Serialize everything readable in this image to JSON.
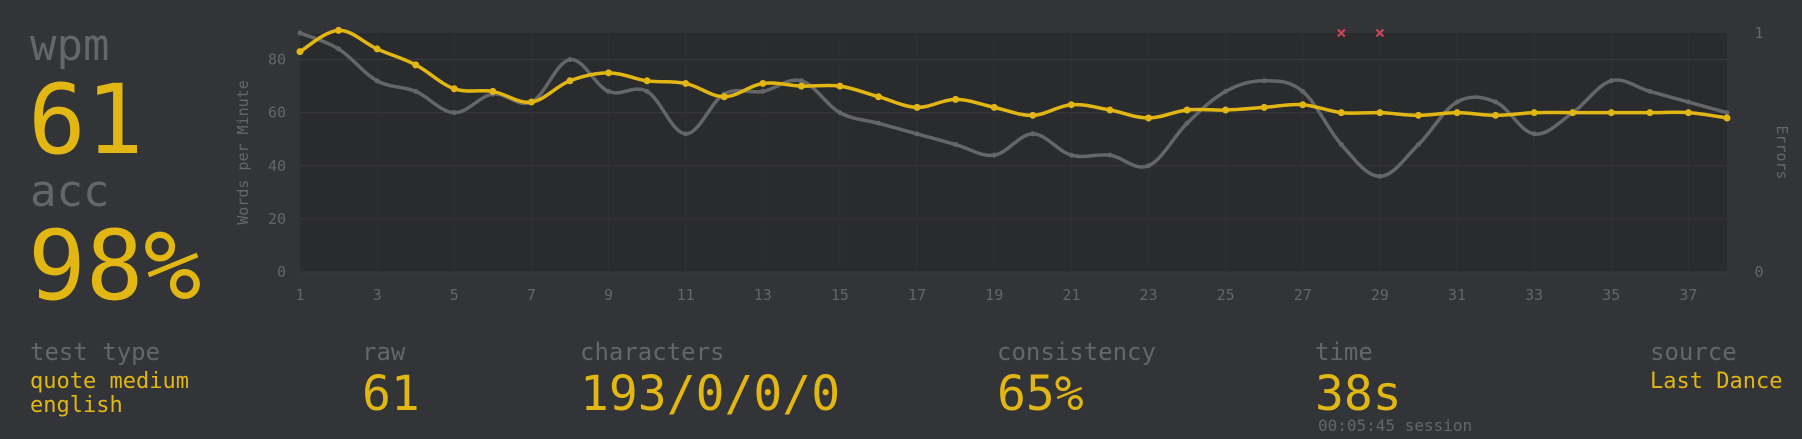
{
  "summary": {
    "wpm_label": "wpm",
    "wpm_value": "61",
    "acc_label": "acc",
    "acc_value": "98%"
  },
  "stats": {
    "test_type_label": "test type",
    "test_type_line1": "quote medium",
    "test_type_line2": "english",
    "raw_label": "raw",
    "raw_value": "61",
    "characters_label": "characters",
    "characters_value": "193/0/0/0",
    "consistency_label": "consistency",
    "consistency_value": "65%",
    "time_label": "time",
    "time_value": "38s",
    "session_time": "00:05:45 session",
    "source_label": "source",
    "source_value": "Last Dance"
  },
  "colors": {
    "background": "#323437",
    "plot_area": "#2a2b2d",
    "accent": "#e2b714",
    "raw_line": "#646669",
    "error": "#ca4754",
    "muted_text": "#646669"
  },
  "chart_data": {
    "type": "line",
    "x": [
      1,
      2,
      3,
      4,
      5,
      6,
      7,
      8,
      9,
      10,
      11,
      12,
      13,
      14,
      15,
      16,
      17,
      18,
      19,
      20,
      21,
      22,
      23,
      24,
      25,
      26,
      27,
      28,
      29,
      30,
      31,
      32,
      33,
      34,
      35,
      36,
      37,
      38
    ],
    "x_ticks": [
      1,
      3,
      5,
      7,
      9,
      11,
      13,
      15,
      17,
      19,
      21,
      23,
      25,
      27,
      29,
      31,
      33,
      35,
      37
    ],
    "ylabel": "Words per Minute",
    "y2label": "Errors",
    "ylim": [
      0,
      90
    ],
    "y_ticks": [
      0,
      20,
      40,
      60,
      80
    ],
    "y2lim": [
      0,
      1
    ],
    "y2_ticks": [
      0,
      1
    ],
    "grid": true,
    "series": [
      {
        "role": "raw",
        "values": [
          90,
          84,
          72,
          68,
          60,
          67,
          64,
          80,
          68,
          68,
          52,
          67,
          68,
          72,
          60,
          56,
          52,
          48,
          44,
          52,
          44,
          44,
          40,
          56,
          68,
          72,
          68,
          48,
          36,
          48,
          64,
          64,
          52,
          60,
          72,
          68,
          64,
          60
        ]
      },
      {
        "role": "wpm",
        "values": [
          83,
          91,
          84,
          78,
          69,
          68,
          64,
          72,
          75,
          72,
          71,
          66,
          71,
          70,
          70,
          66,
          62,
          65,
          62,
          59,
          63,
          61,
          58,
          61,
          61,
          62,
          63,
          60,
          60,
          59,
          60,
          59,
          60,
          60,
          60,
          60,
          60,
          58
        ]
      },
      {
        "role": "errors",
        "points": [
          [
            28,
            1
          ],
          [
            29,
            1
          ]
        ]
      }
    ]
  }
}
